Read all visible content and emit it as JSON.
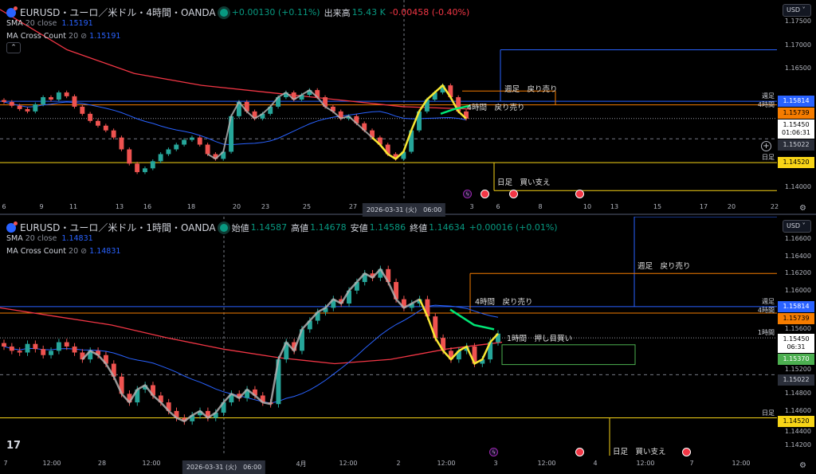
{
  "colors": {
    "up": "#26a69a",
    "down": "#ef5350",
    "sma": "#2962ff",
    "ma_long": "#f23645",
    "weekly": "#2962ff",
    "h4": "#f57c00",
    "daily": "#f7d417",
    "h1": "#4caf50",
    "zigzag": "#f7e733",
    "trail": "#b0b0b0"
  },
  "panels": [
    {
      "id": "p1",
      "header": {
        "symbol": "EURUSD・ユーロ／米ドル・4時間・OANDA",
        "change": "+0.00130 (+0.11%)",
        "volume_label": "出来高",
        "volume": "15.43 K",
        "volume_change": "-0.00458 (-0.40%)"
      },
      "indicators": [
        {
          "name": "SMA",
          "params": "20 close",
          "value": "1.15191"
        },
        {
          "name": "MA Cross Count",
          "params": "20",
          "value": "1.15191"
        }
      ],
      "collapse_icon": "chevron-up-icon",
      "currency": "USD",
      "price_ticks": [
        "1.17500",
        "1.17000",
        "1.16500",
        "1.14000"
      ],
      "price_tick_values": [
        1.175,
        1.17,
        1.165,
        1.14
      ],
      "ylim": [
        1.1375,
        1.1795
      ],
      "tags": [
        {
          "label": "週足",
          "value": "1.15814",
          "price": 1.15814,
          "color": "#2962ff",
          "text": "#fff"
        },
        {
          "label": "4時間",
          "value": "1.15739",
          "price": 1.15739,
          "color": "#f57c00",
          "text": "#000"
        },
        {
          "label": "",
          "value": "1.15450",
          "sub": "01:06:31",
          "price": 1.1545,
          "color": "#fff",
          "text": "#000"
        },
        {
          "label": "",
          "value": "1.15022",
          "price": 1.15022,
          "color": "#2a2e39",
          "text": "#d1d4dc"
        },
        {
          "label": "日足",
          "value": "1.14520",
          "price": 1.1452,
          "color": "#f7d417",
          "text": "#000"
        }
      ],
      "annotations": [
        {
          "text": "週足　戻り売り"
        },
        {
          "text": "4時間　戻り売り"
        },
        {
          "text": "日足　買い支え"
        }
      ],
      "x_ticks": [
        "6",
        "9",
        "11",
        "13",
        "16",
        "18",
        "20",
        "23",
        "25",
        "27",
        "3",
        "6",
        "8",
        "10",
        "13",
        "15",
        "17",
        "20",
        "22"
      ],
      "crosshair_time": "2026-03-31 (火)　06:00",
      "closes": [
        1.158,
        1.1572,
        1.1565,
        1.156,
        1.1575,
        1.159,
        1.1585,
        1.16,
        1.1592,
        1.157,
        1.1555,
        1.154,
        1.153,
        1.152,
        1.1505,
        1.148,
        1.145,
        1.1432,
        1.144,
        1.1455,
        1.147,
        1.148,
        1.149,
        1.15,
        1.1505,
        1.149,
        1.147,
        1.146,
        1.1475,
        1.155,
        1.158,
        1.156,
        1.1545,
        1.1555,
        1.157,
        1.159,
        1.16,
        1.1585,
        1.1595,
        1.1605,
        1.159,
        1.157,
        1.156,
        1.1545,
        1.155,
        1.1535,
        1.152,
        1.1505,
        1.149,
        1.147,
        1.146,
        1.1475,
        1.152,
        1.156,
        1.1585,
        1.16,
        1.1615,
        1.159,
        1.156,
        1.1545
      ],
      "ma_long": [
        1.1775,
        1.169,
        1.164,
        1.1615,
        1.16,
        1.1585,
        1.157,
        1.1565
      ]
    },
    {
      "id": "p2",
      "header": {
        "symbol": "EURUSD・ユーロ／米ドル・1時間・OANDA",
        "open_label": "始値",
        "open": "1.14587",
        "high_label": "高値",
        "high": "1.14678",
        "low_label": "安値",
        "low": "1.14586",
        "close_label": "終値",
        "close": "1.14634",
        "change": "+0.00016 (+0.01%)"
      },
      "indicators": [
        {
          "name": "SMA",
          "params": "20 close",
          "value": "1.14831"
        },
        {
          "name": "MA Cross Count",
          "params": "20",
          "value": "1.14831"
        }
      ],
      "currency": "USD",
      "price_ticks": [
        "1.16600",
        "1.16400",
        "1.16200",
        "1.16000",
        "1.15600",
        "1.15200",
        "1.14800",
        "1.14600",
        "1.14400",
        "1.14200"
      ],
      "price_tick_values": [
        1.166,
        1.164,
        1.162,
        1.16,
        1.156,
        1.152,
        1.148,
        1.146,
        1.144,
        1.142
      ],
      "ylim": [
        1.1408,
        1.1686
      ],
      "tags": [
        {
          "label": "週足",
          "value": "1.15814",
          "price": 1.15814,
          "color": "#2962ff",
          "text": "#fff"
        },
        {
          "label": "4時間",
          "value": "1.15739",
          "price": 1.15739,
          "color": "#f57c00",
          "text": "#000"
        },
        {
          "label": "1時間",
          "value": "1.15450",
          "sub": "06:31",
          "price": 1.1545,
          "color": "#fff",
          "text": "#000"
        },
        {
          "label": "",
          "value": "1.15370",
          "price": 1.1537,
          "color": "#4caf50",
          "text": "#fff"
        },
        {
          "label": "",
          "value": "1.15022",
          "price": 1.15022,
          "color": "#2a2e39",
          "text": "#d1d4dc"
        },
        {
          "label": "日足",
          "value": "1.14520",
          "price": 1.1452,
          "color": "#f7d417",
          "text": "#000"
        }
      ],
      "annotations": [
        {
          "text": "週足　戻り売り"
        },
        {
          "text": "4時間　戻り売り"
        },
        {
          "text": "1時間　押し目買い"
        },
        {
          "text": "日足　買い支え"
        }
      ],
      "x_ticks": [
        "7",
        "12:00",
        "28",
        "12:00",
        "4月",
        "12:00",
        "2",
        "12:00",
        "3",
        "12:00",
        "4",
        "12:00",
        "7",
        "12:00"
      ],
      "crosshair_time": "2026-03-31 (火)　06:00",
      "closes": [
        1.1535,
        1.153,
        1.1528,
        1.1538,
        1.1532,
        1.1525,
        1.153,
        1.154,
        1.1535,
        1.1528,
        1.152,
        1.153,
        1.1525,
        1.1515,
        1.15,
        1.148,
        1.147,
        1.1485,
        1.149,
        1.1478,
        1.147,
        1.146,
        1.1452,
        1.1448,
        1.1455,
        1.146,
        1.1452,
        1.1458,
        1.147,
        1.148,
        1.1475,
        1.1485,
        1.1478,
        1.147,
        1.1468,
        1.152,
        1.154,
        1.153,
        1.1555,
        1.1565,
        1.1575,
        1.158,
        1.159,
        1.1585,
        1.16,
        1.161,
        1.162,
        1.1615,
        1.1625,
        1.161,
        1.159,
        1.158,
        1.1585,
        1.159,
        1.157,
        1.1545,
        1.153,
        1.152,
        1.153,
        1.1535,
        1.1515,
        1.152,
        1.154,
        1.155
      ],
      "ma_long": [
        1.158,
        1.157,
        1.156,
        1.1545,
        1.1532,
        1.1522,
        1.1515,
        1.152,
        1.1532,
        1.154
      ]
    }
  ],
  "branding": {
    "logo": "TV"
  },
  "icons": {
    "settings": "gear-icon",
    "event_us": "us-flag-icon",
    "event_news": "lightning-icon",
    "add": "plus-circle-icon"
  }
}
